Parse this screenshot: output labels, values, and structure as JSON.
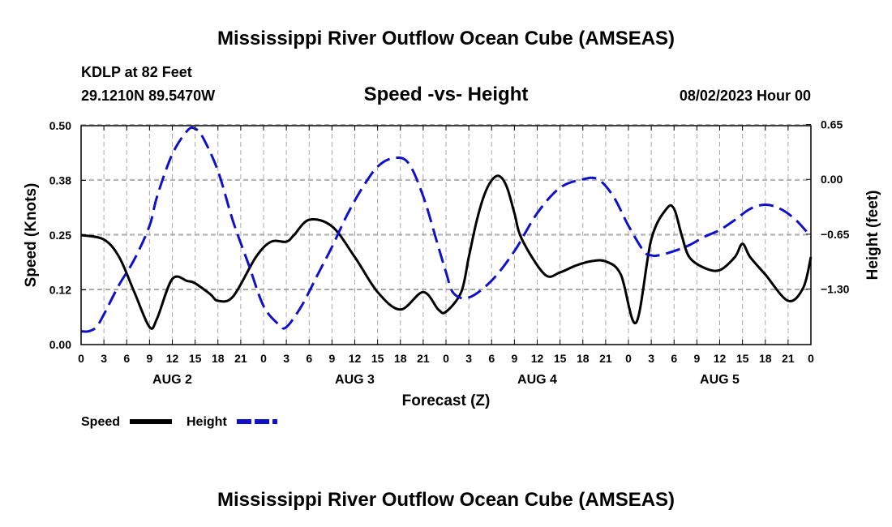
{
  "header": {
    "title": "Mississippi River Outflow Ocean Cube (AMSEAS)",
    "station": "KDLP at 82 Feet",
    "location": "29.1210N  89.5470W",
    "datetime": "08/02/2023 Hour 00",
    "footer_title": "Mississippi River Outflow Ocean Cube (AMSEAS)"
  },
  "colors": {
    "speed": "#000000",
    "height": "#1010c8",
    "grid": "#aaaaaa"
  },
  "chart_data": {
    "type": "line",
    "title": "Speed -vs- Height",
    "xlabel": "Forecast (Z)",
    "ylabel": "Speed (Knots)",
    "y2label": "Height (feet)",
    "xlim": [
      0,
      96
    ],
    "ylim": [
      0,
      0.5
    ],
    "y2lim": [
      -1.9576,
      0.6364
    ],
    "x_ticks": [
      0,
      3,
      6,
      9,
      12,
      15,
      18,
      21,
      24,
      27,
      30,
      33,
      36,
      39,
      42,
      45,
      48,
      51,
      54,
      57,
      60,
      63,
      66,
      69,
      72,
      75,
      78,
      81,
      84,
      87,
      90,
      93,
      96
    ],
    "x_tick_labels": [
      "0",
      "3",
      "6",
      "9",
      "12",
      "15",
      "18",
      "21",
      "0",
      "3",
      "6",
      "9",
      "12",
      "15",
      "18",
      "21",
      "0",
      "3",
      "6",
      "9",
      "12",
      "15",
      "18",
      "21",
      "0",
      "3",
      "6",
      "9",
      "12",
      "15",
      "18",
      "21",
      "0"
    ],
    "y_ticks": [
      0,
      0.125,
      0.25,
      0.375,
      0.5
    ],
    "y_tick_labels": [
      "0.00",
      "0.12",
      "0.25",
      "0.38",
      "0.50"
    ],
    "y2_ticks": [
      0.65,
      0.0,
      -0.65,
      -1.3
    ],
    "y2_tick_labels": [
      "0.65",
      "0.00",
      "−0.65",
      "−1.30"
    ],
    "day_labels": [
      {
        "x": 12,
        "label": "AUG 2"
      },
      {
        "x": 36,
        "label": "AUG 3"
      },
      {
        "x": 60,
        "label": "AUG 4"
      },
      {
        "x": 84,
        "label": "AUG 5"
      }
    ],
    "series": [
      {
        "name": "Speed",
        "axis": "left",
        "style": "solid",
        "x": [
          0,
          3,
          5,
          7,
          9,
          10,
          12,
          14,
          15,
          17,
          18,
          20,
          23,
          25,
          27,
          28,
          30,
          33,
          36,
          39,
          42,
          45,
          47,
          48,
          50,
          51,
          52,
          53,
          54,
          55,
          56,
          57,
          58,
          61,
          63,
          65,
          67,
          69,
          71,
          73,
          75,
          77,
          78,
          79,
          80,
          82,
          84,
          86,
          87,
          88,
          90,
          93,
          95,
          96
        ],
        "y": [
          0.25,
          0.24,
          0.2,
          0.12,
          0.04,
          0.06,
          0.15,
          0.145,
          0.14,
          0.115,
          0.1,
          0.11,
          0.2,
          0.235,
          0.235,
          0.25,
          0.285,
          0.27,
          0.2,
          0.12,
          0.08,
          0.12,
          0.08,
          0.075,
          0.12,
          0.2,
          0.28,
          0.34,
          0.375,
          0.385,
          0.36,
          0.3,
          0.24,
          0.16,
          0.165,
          0.18,
          0.19,
          0.19,
          0.16,
          0.05,
          0.24,
          0.31,
          0.31,
          0.25,
          0.2,
          0.175,
          0.17,
          0.2,
          0.23,
          0.2,
          0.16,
          0.1,
          0.13,
          0.2
        ]
      },
      {
        "name": "Height",
        "axis": "right",
        "style": "dashed",
        "x": [
          0,
          1,
          2,
          3,
          5,
          7,
          9,
          10,
          12,
          14,
          15,
          16,
          18,
          20,
          22,
          24,
          26,
          27,
          29,
          31,
          33,
          35,
          37,
          39,
          41,
          43,
          45,
          47,
          48,
          49,
          51,
          54,
          57,
          60,
          63,
          66,
          68,
          70,
          72,
          74,
          75,
          76,
          78,
          80,
          82,
          84,
          86,
          88,
          90,
          92,
          94,
          96
        ],
        "y": [
          -1.8,
          -1.8,
          -1.75,
          -1.6,
          -1.25,
          -0.95,
          -0.55,
          -0.2,
          0.3,
          0.58,
          0.6,
          0.5,
          0.1,
          -0.5,
          -1.0,
          -1.5,
          -1.72,
          -1.75,
          -1.5,
          -1.15,
          -0.8,
          -0.42,
          -0.1,
          0.15,
          0.25,
          0.2,
          -0.2,
          -0.8,
          -1.1,
          -1.35,
          -1.4,
          -1.2,
          -0.85,
          -0.4,
          -0.1,
          0.0,
          0.0,
          -0.2,
          -0.55,
          -0.85,
          -0.9,
          -0.9,
          -0.85,
          -0.78,
          -0.68,
          -0.6,
          -0.48,
          -0.35,
          -0.3,
          -0.35,
          -0.48,
          -0.68
        ]
      }
    ],
    "legend": [
      {
        "label": "Speed",
        "color": "#000000",
        "style": "solid"
      },
      {
        "label": "Height",
        "color": "#1010c8",
        "style": "dashed"
      }
    ]
  }
}
